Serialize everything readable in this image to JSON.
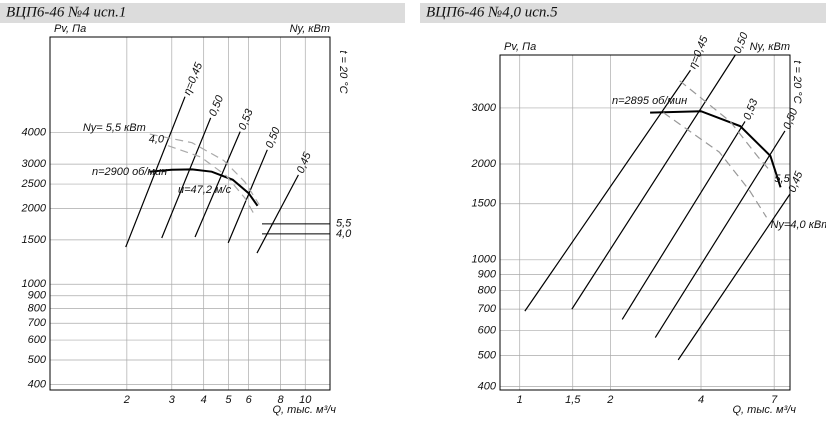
{
  "chart_data": [
    {
      "type": "line",
      "title": "ВЦП6-46 №4 исп.1",
      "y_label": "Pv, Па",
      "y2_label": "Ny, кВт",
      "x_label": "Q, тыс. м³/ч",
      "xscale": "log",
      "yscale": "log",
      "grid": true,
      "xlim": [
        1,
        12.5
      ],
      "xticks": [
        2,
        3,
        4,
        5,
        6,
        8,
        10
      ],
      "ylim": [
        380,
        9600
      ],
      "yticks": [
        400,
        500,
        600,
        700,
        800,
        900,
        1000,
        1500,
        2000,
        2500,
        3000,
        4000
      ],
      "y2lim": [
        -19.4,
        33.5
      ],
      "y2ticks": [
        {
          "value": 5.5,
          "label": "5,5"
        },
        {
          "value": 4.0,
          "label": "4,0"
        }
      ],
      "annotations": [
        "n=2900 об/мин",
        "u=47,2 м/с",
        "t = 20 °C"
      ],
      "series": [
        {
          "name": "η=0,45",
          "color": "#000000",
          "x": [
            1.98,
            3.38
          ],
          "values": [
            1405,
            5560
          ]
        },
        {
          "name": "0,50",
          "color": "#000000",
          "x": [
            2.74,
            4.26
          ],
          "values": [
            1526,
            4580
          ]
        },
        {
          "name": "0,53",
          "color": "#000000",
          "x": [
            3.7,
            5.56
          ],
          "values": [
            1540,
            4040
          ]
        },
        {
          "name": "0,50",
          "color": "#000000",
          "x": [
            4.99,
            7.1
          ],
          "values": [
            1460,
            3420
          ]
        },
        {
          "name": "0,45",
          "color": "#000000",
          "x": [
            6.47,
            9.4
          ],
          "values": [
            1330,
            2720
          ]
        },
        {
          "color": "#000000",
          "width": 2,
          "x": [
            2.45,
            3.0,
            3.6,
            4.3,
            5.2,
            6.0,
            6.5
          ],
          "values": [
            2800,
            2850,
            2860,
            2800,
            2600,
            2300,
            2050
          ]
        },
        {
          "name": "Ny= 5,5 кВт",
          "color": "#aaaaaa",
          "dashed": true,
          "x": [
            2.46,
            3.6,
            4.8,
            5.8,
            6.6
          ],
          "values": [
            3950,
            3650,
            3100,
            2550,
            2070
          ]
        },
        {
          "name": "4,0",
          "color": "#aaaaaa",
          "dashed": true,
          "x": [
            2.9,
            3.9,
            4.9,
            5.8,
            6.3
          ],
          "values": [
            3550,
            3200,
            2700,
            2200,
            1900
          ]
        }
      ]
    },
    {
      "type": "line",
      "title": "ВЦП6-46 №4,0 исп.5",
      "y_label": "Pv, Па",
      "y2_label": "Ny, кВт",
      "x_label": "Q, тыс. м³/ч",
      "xscale": "log",
      "yscale": "log",
      "grid": true,
      "xlim": [
        0.86,
        7.9
      ],
      "xticks": [
        1,
        {
          "value": 1.5,
          "label": "1,5"
        },
        2,
        4,
        7
      ],
      "ylim": [
        390,
        4400
      ],
      "yticks": [
        400,
        500,
        600,
        700,
        800,
        900,
        1000,
        1500,
        2000,
        3000
      ],
      "annotations": [
        "n=2895 об/мин",
        "t = 20 °C"
      ],
      "series": [
        {
          "name": "η=0,45",
          "color": "#000000",
          "x": [
            1.04,
            3.69
          ],
          "values": [
            690,
            3940
          ]
        },
        {
          "name": "0,50",
          "color": "#000000",
          "x": [
            1.49,
            5.2
          ],
          "values": [
            700,
            4400
          ]
        },
        {
          "name": "0,53",
          "color": "#000000",
          "x": [
            2.19,
            5.6
          ],
          "values": [
            650,
            2720
          ]
        },
        {
          "name": "0,50",
          "color": "#000000",
          "x": [
            2.82,
            7.6
          ],
          "values": [
            570,
            2540
          ]
        },
        {
          "name": "0,45",
          "color": "#000000",
          "x": [
            3.36,
            7.9
          ],
          "values": [
            485,
            1610
          ]
        },
        {
          "color": "#000000",
          "width": 2,
          "x": [
            2.71,
            4.0,
            5.4,
            6.8,
            7.35
          ],
          "values": [
            2900,
            2930,
            2630,
            2120,
            1690
          ]
        },
        {
          "name": "5,5",
          "color": "#999999",
          "dashed": true,
          "x": [
            3.4,
            5.0,
            6.2,
            6.8
          ],
          "values": [
            3650,
            2720,
            2100,
            1900
          ]
        },
        {
          "name": "Ny=4,0 кВт",
          "color": "#999999",
          "dashed": true,
          "x": [
            3.0,
            4.6,
            5.8,
            6.6
          ],
          "values": [
            2900,
            2180,
            1650,
            1360
          ]
        }
      ]
    }
  ]
}
